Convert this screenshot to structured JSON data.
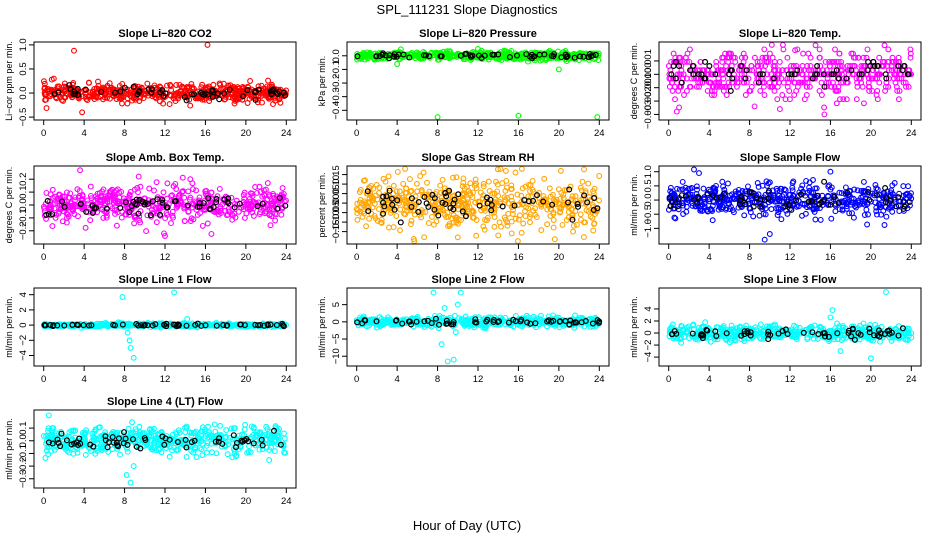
{
  "figure": {
    "title": "SPL_111231  Slope Diagnostics",
    "xlabel": "Hour of Day (UTC)"
  },
  "chart_data": [
    {
      "type": "scatter",
      "title": "Slope Li−820 CO2",
      "ylabel": "Li−cor ppm per min.",
      "xlim": [
        0,
        24
      ],
      "ylim": [
        -0.5,
        1.0
      ],
      "xticks": [
        0,
        4,
        8,
        12,
        16,
        20,
        24
      ],
      "yticks": [
        -0.5,
        0.0,
        0.5,
        1.0
      ],
      "ytick_labels": [
        "−0.5",
        "0.0",
        "0.5",
        "1.0"
      ],
      "color": "#ff0000",
      "center": 0.0,
      "spread": 0.12,
      "outliers": [
        [
          3.0,
          0.88
        ],
        [
          16.2,
          1.0
        ],
        [
          3.8,
          -0.4
        ],
        [
          1.0,
          0.3
        ],
        [
          0.8,
          0.28
        ]
      ]
    },
    {
      "type": "scatter",
      "title": "Slope Li−820 Pressure",
      "ylabel": "kPa per min.",
      "xlim": [
        0,
        24
      ],
      "ylim": [
        -0.45,
        0.08
      ],
      "xticks": [
        0,
        4,
        8,
        12,
        16,
        20,
        24
      ],
      "yticks": [
        -0.4,
        -0.3,
        -0.2,
        -0.1,
        0.0
      ],
      "ytick_labels": [
        "−0.4",
        "−0.3",
        "−0.2",
        "−0.1",
        "0.0"
      ],
      "color": "#00ff00",
      "center": 0.0,
      "spread": 0.02,
      "outliers": [
        [
          8.0,
          -0.45
        ],
        [
          16.0,
          -0.44
        ],
        [
          23.8,
          -0.45
        ],
        [
          20.0,
          -0.1
        ],
        [
          4.0,
          -0.06
        ],
        [
          12.0,
          0.05
        ]
      ]
    },
    {
      "type": "scatter",
      "title": "Slope Li−820 Temp.",
      "ylabel": "degrees C per min.",
      "xlim": [
        0,
        24
      ],
      "ylim": [
        -0.0032,
        0.0022
      ],
      "xticks": [
        0,
        4,
        8,
        12,
        16,
        20,
        24
      ],
      "yticks": [
        -0.003,
        -0.002,
        -0.001,
        0.0,
        0.001
      ],
      "ytick_labels": [
        "−0.003",
        "−0.002",
        "−0.001",
        "0.000",
        "0.001"
      ],
      "color": "#ff00ff",
      "center": 0.0,
      "spread": 0.0011,
      "quantum": 0.00031,
      "outliers": [
        [
          10.2,
          0.0022
        ],
        [
          11.3,
          0.0022
        ],
        [
          12.5,
          0.0018
        ],
        [
          8.5,
          -0.0024
        ],
        [
          11.0,
          -0.0026
        ],
        [
          15.4,
          -0.003
        ]
      ]
    },
    {
      "type": "scatter",
      "title": "Slope Amb. Box Temp.",
      "ylabel": "degrees C per min.",
      "xlim": [
        0,
        24
      ],
      "ylim": [
        -0.28,
        0.28
      ],
      "xticks": [
        0,
        4,
        8,
        12,
        16,
        20,
        24
      ],
      "yticks": [
        -0.2,
        -0.1,
        0.0,
        0.1,
        0.2
      ],
      "ytick_labels": [
        "−0.2",
        "−0.1",
        "0.0",
        "0.1",
        "0.2"
      ],
      "color": "#ff00ff",
      "center": 0.0,
      "spread": 0.09,
      "outliers": [
        [
          3.6,
          0.27
        ],
        [
          12.0,
          -0.24
        ],
        [
          11.9,
          -0.22
        ],
        [
          9.4,
          0.22
        ],
        [
          14.5,
          0.2
        ]
      ]
    },
    {
      "type": "scatter",
      "title": "Slope Gas Stream RH",
      "ylabel": "percent per min.",
      "xlim": [
        0,
        24
      ],
      "ylim": [
        -0.2,
        0.18
      ],
      "xticks": [
        0,
        4,
        8,
        12,
        16,
        20,
        24
      ],
      "yticks": [
        -0.15,
        -0.1,
        -0.05,
        0.0,
        0.05,
        0.1,
        0.15
      ],
      "ytick_labels": [
        "−0.15",
        "−0.10",
        "−0.05",
        "0.00",
        "0.05",
        "0.10",
        "0.15"
      ],
      "color": "#ffa500",
      "center": 0.0,
      "spread": 0.09,
      "outliers": [
        [
          20.2,
          0.17
        ],
        [
          14.0,
          -0.17
        ],
        [
          10.0,
          -0.18
        ],
        [
          19.6,
          -0.19
        ]
      ]
    },
    {
      "type": "scatter",
      "title": "Slope Sample Flow",
      "ylabel": "ml/min per min.",
      "xlim": [
        0,
        24
      ],
      "ylim": [
        -1.45,
        1.1
      ],
      "xticks": [
        0,
        4,
        8,
        12,
        16,
        20,
        24
      ],
      "yticks": [
        -1.0,
        -0.5,
        0.0,
        0.5,
        1.0
      ],
      "ytick_labels": [
        "−1.0",
        "−0.5",
        "0.0",
        "0.5",
        "1.0"
      ],
      "color": "#0000ff",
      "center": 0.0,
      "spread": 0.38,
      "outliers": [
        [
          2.5,
          1.08
        ],
        [
          3.0,
          0.95
        ],
        [
          9.5,
          -1.4
        ],
        [
          10.0,
          -1.2
        ],
        [
          16.0,
          1.0
        ]
      ]
    },
    {
      "type": "scatter",
      "title": "Slope Line 1 Flow",
      "ylabel": "ml/min per min.",
      "xlim": [
        0,
        24
      ],
      "ylim": [
        -5,
        4.5
      ],
      "xticks": [
        0,
        4,
        8,
        12,
        16,
        20,
        24
      ],
      "yticks": [
        -4,
        -2,
        0,
        2,
        4
      ],
      "ytick_labels": [
        "−4",
        "−2",
        "0",
        "2",
        "4"
      ],
      "color": "#00ffff",
      "center": 0.0,
      "spread": 0.15,
      "outliers": [
        [
          7.8,
          3.7
        ],
        [
          12.9,
          4.3
        ],
        [
          8.5,
          -2.0
        ],
        [
          8.9,
          -4.3
        ],
        [
          8.3,
          -1.0
        ],
        [
          8.6,
          -3.0
        ],
        [
          14.2,
          0.8
        ]
      ]
    },
    {
      "type": "scatter",
      "title": "Slope Line 2 Flow",
      "ylabel": "ml/min per min.",
      "xlim": [
        0,
        24
      ],
      "ylim": [
        -12,
        9
      ],
      "xticks": [
        0,
        4,
        8,
        12,
        16,
        20,
        24
      ],
      "yticks": [
        -10,
        -5,
        0,
        5
      ],
      "ytick_labels": [
        "−10",
        "−5",
        "0",
        "5"
      ],
      "color": "#00ffff",
      "center": 0.0,
      "spread": 0.9,
      "outliers": [
        [
          7.6,
          8.5
        ],
        [
          10.3,
          8.5
        ],
        [
          8.4,
          -6.5
        ],
        [
          9.0,
          -11.5
        ],
        [
          9.6,
          -11.0
        ],
        [
          10.0,
          5.0
        ],
        [
          8.7,
          4.0
        ],
        [
          9.8,
          -3.0
        ]
      ]
    },
    {
      "type": "scatter",
      "title": "Slope Line 3 Flow",
      "ylabel": "ml/min per min.",
      "xlim": [
        0,
        24
      ],
      "ylim": [
        -5,
        7
      ],
      "xticks": [
        0,
        4,
        8,
        12,
        16,
        20,
        24
      ],
      "yticks": [
        -4,
        -2,
        0,
        2,
        4
      ],
      "ytick_labels": [
        "−4",
        "−2",
        "0",
        "2",
        "4"
      ],
      "color": "#00ffff",
      "center": 0.0,
      "spread": 0.85,
      "outliers": [
        [
          21.5,
          6.8
        ],
        [
          16.2,
          3.8
        ],
        [
          16.0,
          2.6
        ],
        [
          20.0,
          -4.2
        ],
        [
          17.0,
          -3.0
        ]
      ]
    },
    {
      "type": "scatter",
      "title": "Slope Line 4 (LT) Flow",
      "ylabel": "ml/min per min.",
      "xlim": [
        0,
        24
      ],
      "ylim": [
        -0.35,
        0.22
      ],
      "xticks": [
        0,
        4,
        8,
        12,
        16,
        20,
        24
      ],
      "yticks": [
        -0.3,
        -0.2,
        -0.1,
        0.0,
        0.1
      ],
      "ytick_labels": [
        "−0.3",
        "−0.2",
        "−0.1",
        "0.0",
        "0.1"
      ],
      "color": "#00ffff",
      "center": 0.0,
      "spread": 0.07,
      "outliers": [
        [
          8.6,
          -0.33
        ],
        [
          8.2,
          -0.27
        ],
        [
          0.5,
          0.2
        ],
        [
          8.9,
          -0.2
        ]
      ]
    }
  ]
}
